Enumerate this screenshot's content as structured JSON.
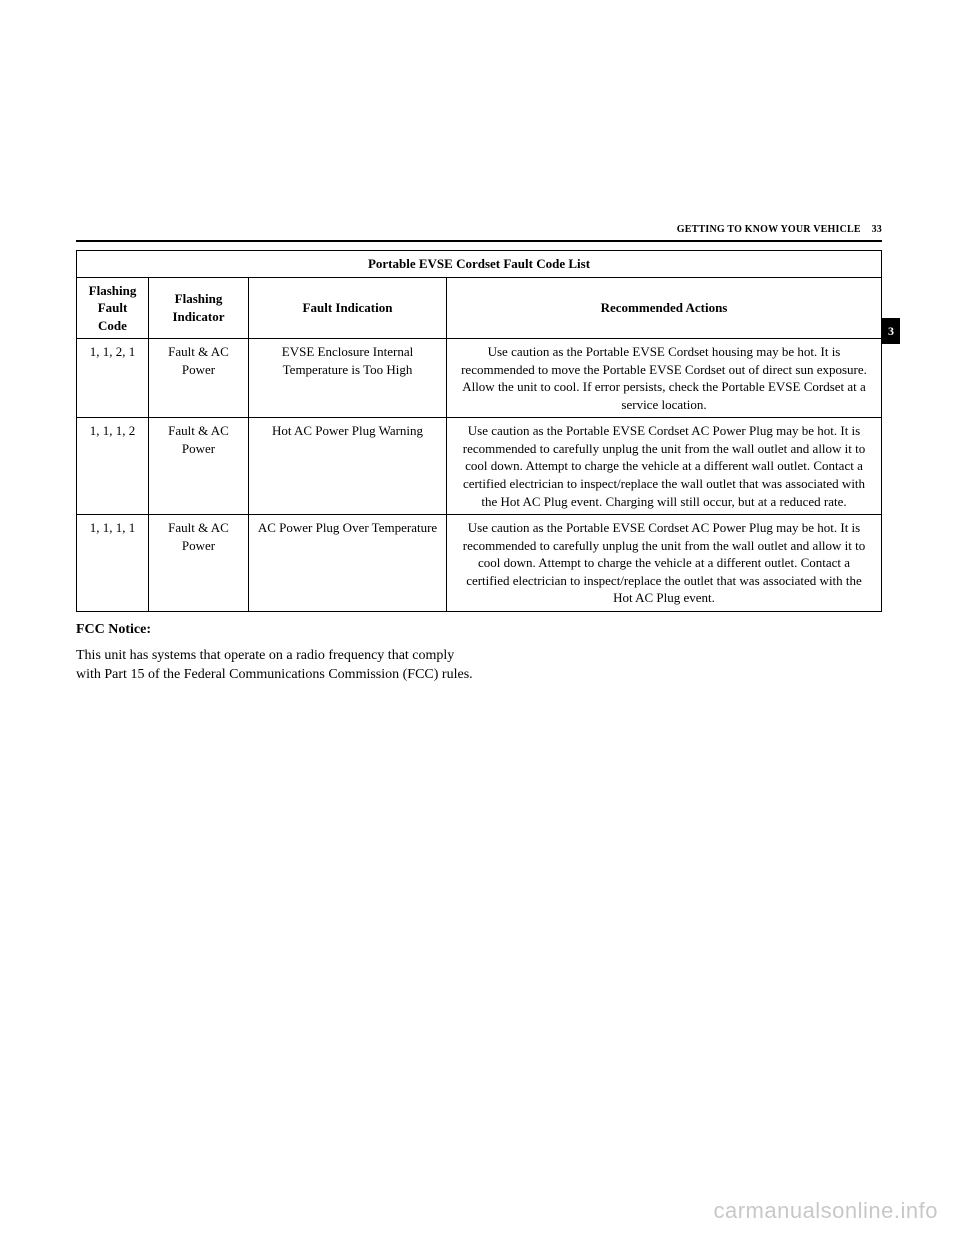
{
  "header": {
    "runningHead": "GETTING TO KNOW YOUR VEHICLE",
    "pageNumber": "33",
    "sideTab": "3"
  },
  "table": {
    "title": "Portable EVSE Cordset Fault Code List",
    "columns": {
      "code": "Flashing Fault Code",
      "indicator": "Flashing Indicator",
      "fault": "Fault Indication",
      "actions": "Recommended Actions"
    },
    "rows": [
      {
        "code": "1, 1, 2, 1",
        "indicator": "Fault & AC Power",
        "fault": "EVSE Enclosure Internal Temperature is Too High",
        "actions": "Use caution as the Portable EVSE Cordset housing may be hot. It is recommended to move the Portable EVSE Cordset out of direct sun exposure. Allow the unit to cool. If error persists, check the Portable EVSE Cordset at a service location."
      },
      {
        "code": "1, 1, 1, 2",
        "indicator": "Fault & AC Power",
        "fault": "Hot AC Power Plug Warning",
        "actions": "Use caution as the Portable EVSE Cordset AC Power Plug may be hot. It is recommended to carefully unplug the unit from the wall outlet and allow it to cool down. Attempt to charge the vehicle at a different wall outlet. Contact a certified electrician to inspect/replace the wall outlet that was associated with the Hot AC Plug event. Charging will still occur, but at a reduced rate."
      },
      {
        "code": "1, 1, 1, 1",
        "indicator": "Fault & AC Power",
        "fault": "AC Power Plug Over Temperature",
        "actions": "Use caution as the Portable EVSE Cordset AC Power Plug may be hot. It is recommended to carefully unplug the unit from the wall outlet and allow it to cool down. Attempt to charge the vehicle at a different outlet. Contact a certified electrician to inspect/replace the outlet that was associated with the Hot AC Plug event."
      }
    ]
  },
  "fcc": {
    "title": "FCC Notice:",
    "body": "This unit has systems that operate on a radio frequency that comply with Part 15 of the Federal Communications Commission (FCC) rules."
  },
  "watermark": "carmanualsonline.info"
}
